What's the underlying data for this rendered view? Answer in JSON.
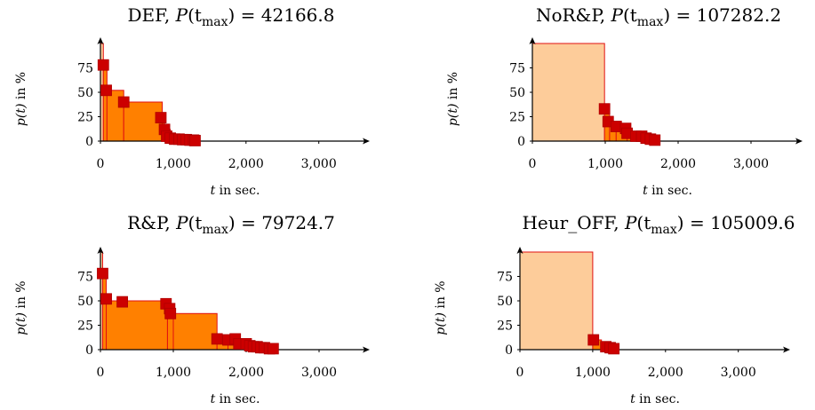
{
  "chart_data": [
    {
      "type": "area",
      "title_parts": {
        "name": "DEF",
        "sep": ",",
        "lhs": "P",
        "sub": "max",
        "value": "42166.8"
      },
      "xlabel": {
        "var": "t",
        "rest": " in sec."
      },
      "ylabel": {
        "var": "p(t)",
        "rest": " in %"
      },
      "xlim": [
        0,
        3500
      ],
      "ylim": [
        0,
        100
      ],
      "xticks": [
        0,
        1000,
        2000,
        3000
      ],
      "xtick_labels": [
        "0",
        "1,000",
        "2,000",
        "3,000"
      ],
      "yticks": [
        0,
        25,
        50,
        75
      ],
      "ytick_labels": [
        "0",
        "25",
        "50",
        "75"
      ],
      "step_curve": {
        "x": [
          0,
          40,
          90,
          320,
          850,
          880,
          960,
          1050,
          1150,
          1250,
          1310
        ],
        "y": [
          100,
          78,
          52,
          40,
          24,
          12,
          5,
          3,
          2,
          1.5,
          1
        ]
      },
      "points": {
        "x": [
          40,
          80,
          320,
          830,
          880,
          910,
          960,
          1020,
          1080,
          1130,
          1180,
          1230,
          1280,
          1300
        ],
        "y": [
          78,
          52,
          40,
          24,
          12,
          5,
          3,
          2,
          2,
          1.5,
          1.5,
          1,
          1,
          0.5
        ]
      }
    },
    {
      "type": "area",
      "title_parts": {
        "name": "NoR&P",
        "sep": ",",
        "lhs": "P",
        "sub": "max",
        "value": "107282.2"
      },
      "xlabel": {
        "var": "t",
        "rest": " in sec."
      },
      "ylabel": {
        "var": "p(t)",
        "rest": " in %"
      },
      "xlim": [
        0,
        3500
      ],
      "ylim": [
        0,
        100
      ],
      "xticks": [
        0,
        1000,
        2000,
        3000
      ],
      "xtick_labels": [
        "0",
        "1,000",
        "2,000",
        "3,000"
      ],
      "yticks": [
        0,
        25,
        50,
        75
      ],
      "ytick_labels": [
        "0",
        "25",
        "50",
        "75"
      ],
      "step_curve": {
        "x": [
          0,
          990,
          1060,
          1150,
          1300,
          1420,
          1560,
          1700
        ],
        "y": [
          100,
          33,
          20,
          15,
          8,
          5,
          3,
          1
        ]
      },
      "points": {
        "x": [
          990,
          1040,
          1150,
          1280,
          1300,
          1420,
          1500,
          1560,
          1620,
          1680
        ],
        "y": [
          33,
          20,
          15,
          13,
          8,
          5,
          5,
          3,
          2,
          1
        ]
      }
    },
    {
      "type": "area",
      "title_parts": {
        "name": "R&P",
        "sep": ",",
        "lhs": "P",
        "sub": "max",
        "value": "79724.7"
      },
      "xlabel": {
        "var": "t",
        "rest": " in sec."
      },
      "ylabel": {
        "var": "p(t)",
        "rest": " in %"
      },
      "xlim": [
        0,
        3500
      ],
      "ylim": [
        0,
        100
      ],
      "xticks": [
        0,
        1000,
        2000,
        3000
      ],
      "xtick_labels": [
        "0",
        "1,000",
        "2,000",
        "3,000"
      ],
      "yticks": [
        0,
        25,
        50,
        75
      ],
      "ytick_labels": [
        "0",
        "25",
        "50",
        "75"
      ],
      "step_curve": {
        "x": [
          0,
          30,
          80,
          920,
          1000,
          1600,
          1750,
          1880,
          2000,
          2100,
          2250,
          2370
        ],
        "y": [
          100,
          78,
          50,
          42,
          37,
          11,
          10,
          6,
          4,
          3,
          2,
          1
        ]
      },
      "points": {
        "x": [
          30,
          80,
          300,
          900,
          950,
          960,
          1600,
          1750,
          1850,
          1900,
          2000,
          2050,
          2100,
          2150,
          2200,
          2250,
          2320,
          2370
        ],
        "y": [
          78,
          52,
          49,
          47,
          42,
          37,
          11,
          10,
          11,
          6,
          6,
          4,
          3,
          3,
          2,
          2,
          1,
          1
        ]
      }
    },
    {
      "type": "area",
      "title_parts": {
        "name": "Heur_OFF",
        "sep": ",",
        "lhs": "P",
        "sub": "max",
        "value": "105009.6"
      },
      "xlabel": {
        "var": "t",
        "rest": " in sec."
      },
      "ylabel": {
        "var": "p(t)",
        "rest": " in %"
      },
      "xlim": [
        0,
        3500
      ],
      "ylim": [
        0,
        100
      ],
      "xticks": [
        0,
        1000,
        2000,
        3000
      ],
      "xtick_labels": [
        "0",
        "1,000",
        "2,000",
        "3,000"
      ],
      "yticks": [
        0,
        25,
        50,
        75
      ],
      "ytick_labels": [
        "0",
        "25",
        "50",
        "75"
      ],
      "step_curve": {
        "x": [
          0,
          1000,
          1120,
          1200,
          1290
        ],
        "y": [
          100,
          10,
          8,
          2,
          1
        ]
      },
      "points": {
        "x": [
          1010,
          1180,
          1240,
          1290
        ],
        "y": [
          10,
          3,
          2,
          1
        ]
      }
    }
  ],
  "colors": {
    "light_fill": "#fdcc9a",
    "dark_fill": "#ff8000",
    "curve": "#e01010",
    "marker": "#cc0000"
  }
}
